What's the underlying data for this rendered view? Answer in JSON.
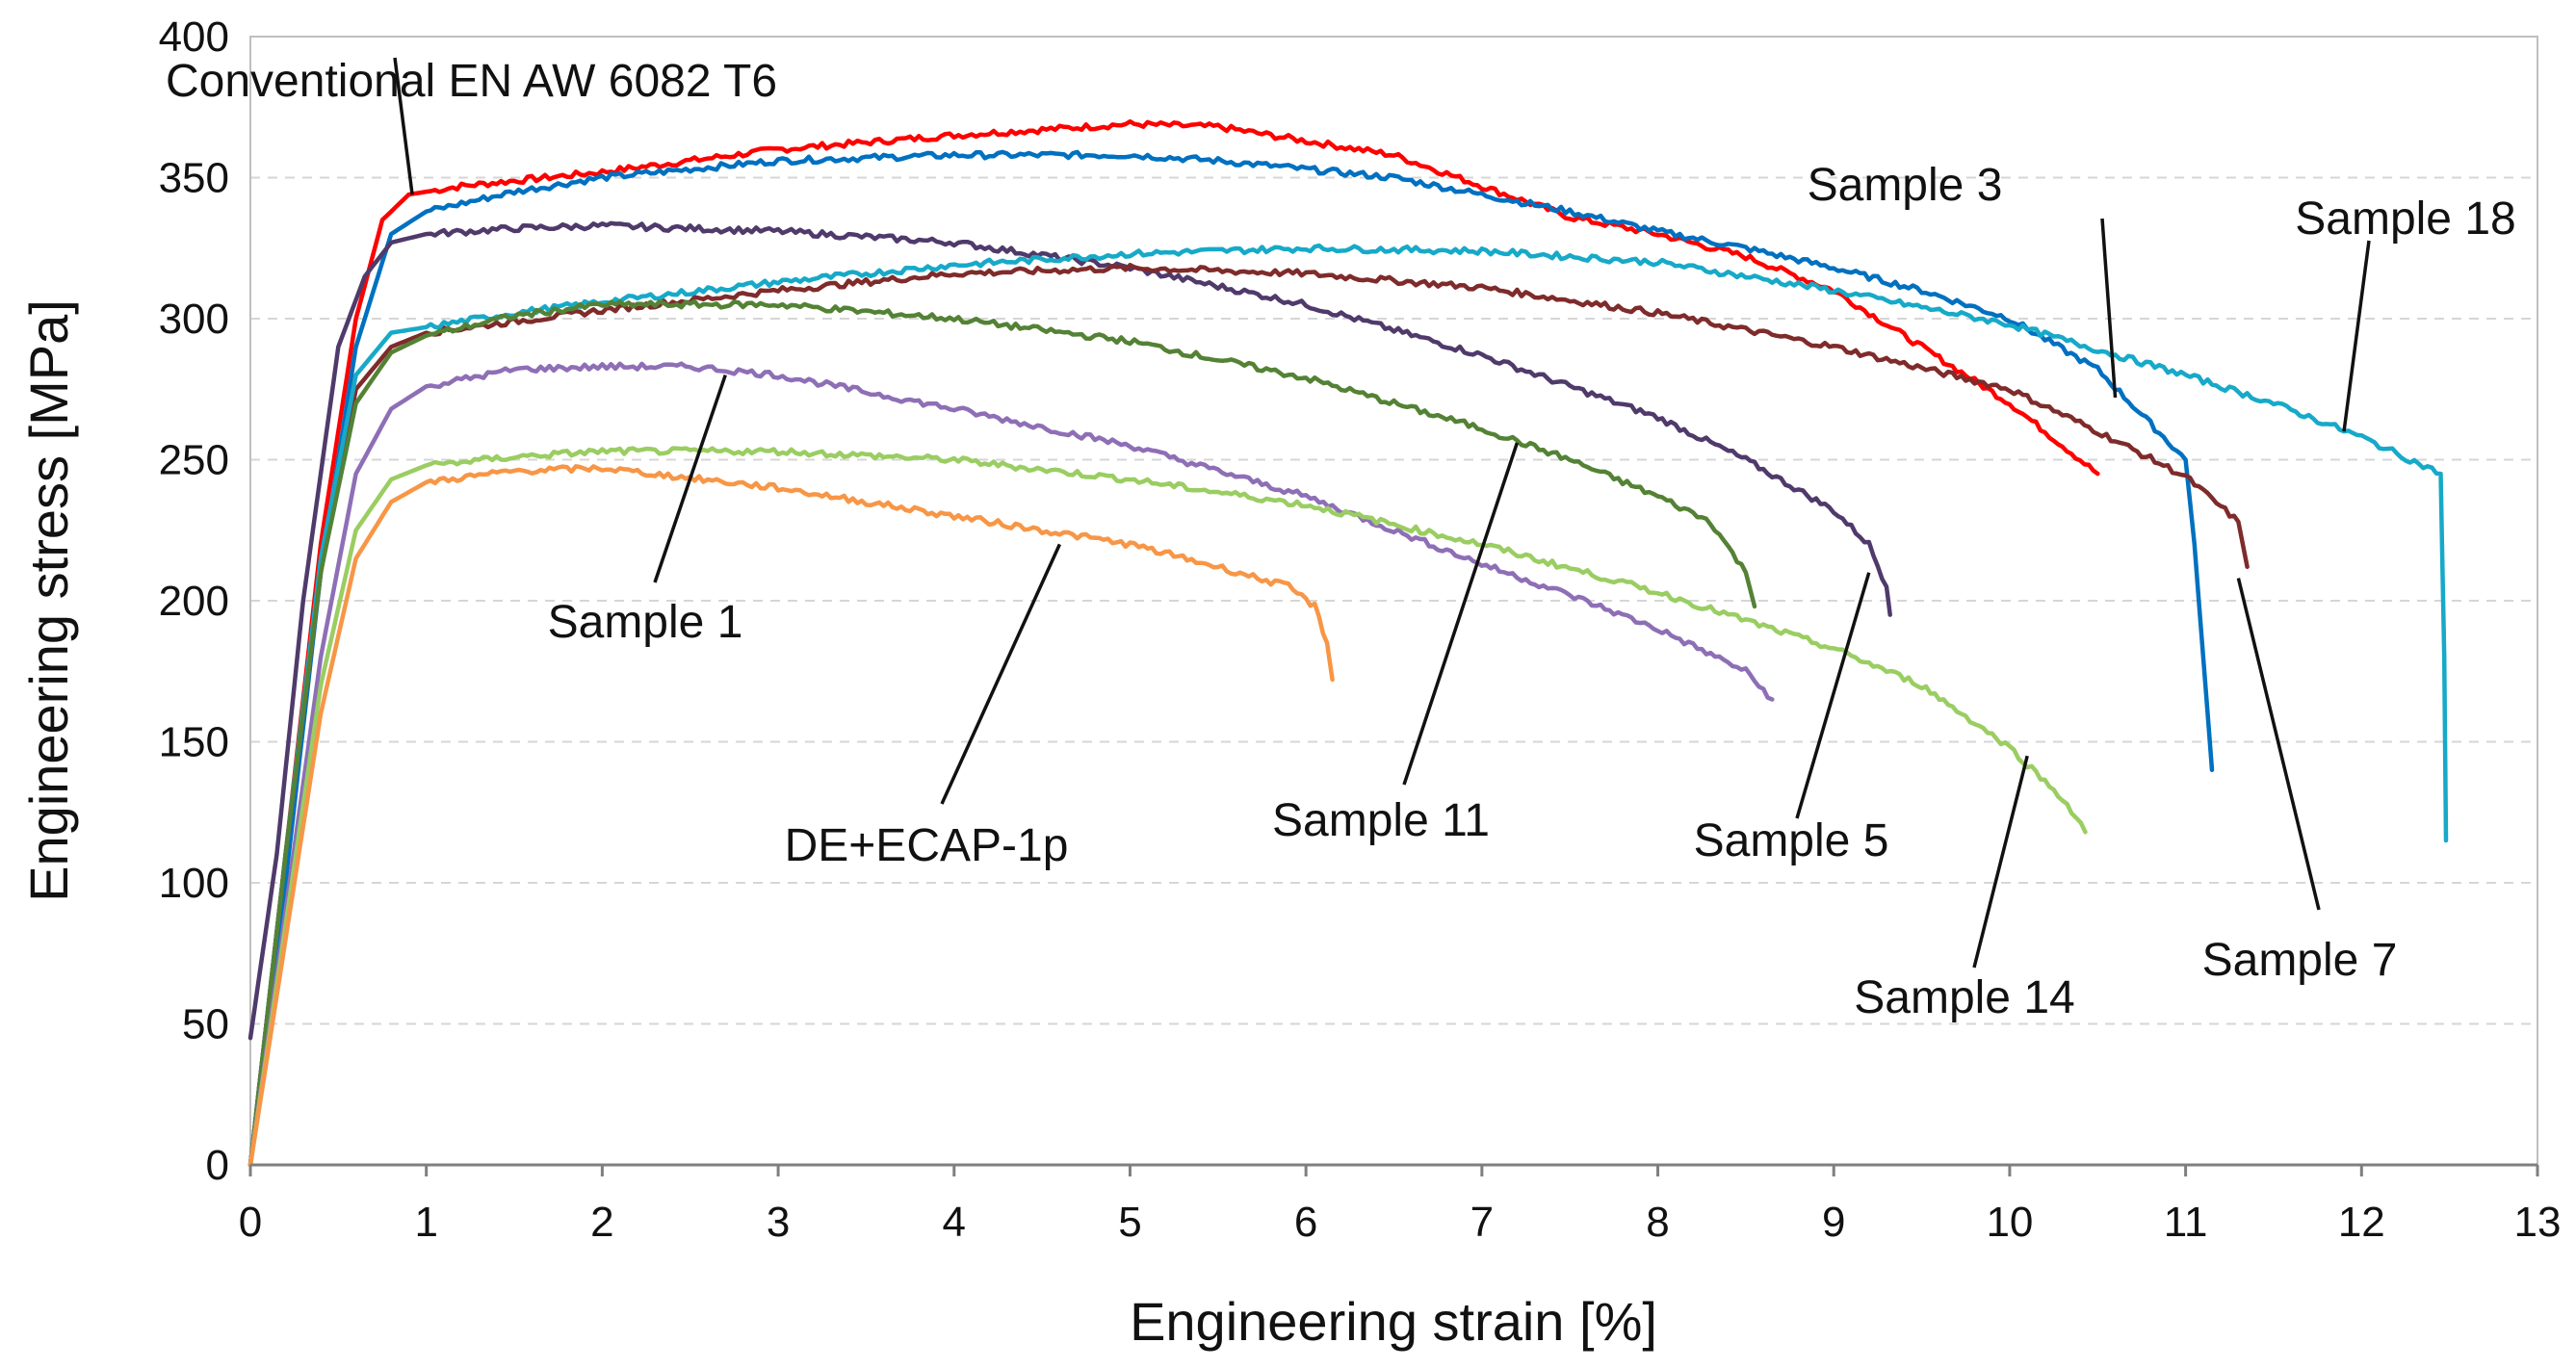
{
  "chart_data": {
    "type": "line",
    "title": "",
    "xlabel": "Engineering strain [%]",
    "ylabel": "Engineering stress [MPa]",
    "xlim": [
      0,
      13
    ],
    "ylim": [
      0,
      400
    ],
    "xticks": [
      0,
      1,
      2,
      3,
      4,
      5,
      6,
      7,
      8,
      9,
      10,
      11,
      12,
      13
    ],
    "yticks": [
      0,
      50,
      100,
      150,
      200,
      250,
      300,
      350,
      400
    ],
    "grid": true,
    "series": [
      {
        "name": "Conventional EN AW 6082 T6",
        "color": "#ff0000",
        "x": [
          0,
          0.2,
          0.4,
          0.6,
          0.75,
          0.9,
          1.2,
          2,
          3,
          4,
          5,
          5.5,
          6.5,
          7,
          7.5,
          8,
          8.5,
          9,
          9.5,
          10,
          10.3,
          10.5
        ],
        "y": [
          0,
          110,
          220,
          300,
          335,
          344,
          347,
          352,
          360,
          365,
          369,
          368,
          358,
          347,
          336,
          330,
          322,
          310,
          290,
          270,
          255,
          245
        ]
      },
      {
        "name": "Sample 3",
        "color": "#0070c0",
        "x": [
          0,
          0.2,
          0.4,
          0.6,
          0.8,
          1,
          1.5,
          2,
          3,
          4,
          5,
          5.5,
          6.5,
          7,
          7.5,
          8,
          8.5,
          9,
          9.5,
          10,
          10.5,
          11,
          11.05,
          11.1,
          11.15
        ],
        "y": [
          0,
          100,
          210,
          290,
          330,
          338,
          345,
          350,
          356,
          358,
          358,
          356,
          350,
          344,
          338,
          331,
          325,
          318,
          310,
          300,
          282,
          250,
          220,
          180,
          140
        ]
      },
      {
        "name": "Sample 5",
        "color": "#4f3a6b",
        "x": [
          0,
          0.15,
          0.3,
          0.5,
          0.65,
          0.8,
          1,
          1.5,
          2,
          3,
          4,
          5,
          6,
          7,
          8,
          8.5,
          9,
          9.2,
          9.3,
          9.32
        ],
        "y": [
          45,
          110,
          200,
          290,
          315,
          327,
          330,
          332,
          333,
          331,
          327,
          318,
          305,
          287,
          265,
          250,
          232,
          220,
          205,
          195
        ]
      },
      {
        "name": "Sample 7",
        "color": "#7f2b2b",
        "x": [
          0,
          0.2,
          0.4,
          0.6,
          0.8,
          1,
          1.5,
          2,
          3,
          4,
          5,
          6,
          7,
          8,
          9,
          10,
          10.5,
          11,
          11.3,
          11.35
        ],
        "y": [
          0,
          110,
          210,
          275,
          290,
          295,
          299,
          303,
          310,
          316,
          318,
          316,
          311,
          302,
          290,
          275,
          260,
          244,
          228,
          212
        ]
      },
      {
        "name": "Sample 18",
        "color": "#17a9c8",
        "x": [
          0,
          0.2,
          0.4,
          0.6,
          0.8,
          1,
          1.5,
          2,
          3,
          4,
          5,
          6,
          7,
          8,
          9,
          10,
          11,
          11.5,
          12,
          12.45,
          12.47,
          12.48
        ],
        "y": [
          0,
          110,
          215,
          280,
          295,
          297,
          302,
          306,
          313,
          319,
          323,
          325,
          324,
          320,
          310,
          298,
          280,
          270,
          258,
          245,
          180,
          115
        ]
      },
      {
        "name": "Sample 11",
        "color": "#548235",
        "x": [
          0,
          0.2,
          0.4,
          0.6,
          0.8,
          1,
          1.5,
          2,
          3,
          4,
          5,
          6,
          7,
          7.5,
          8,
          8.3,
          8.5,
          8.55
        ],
        "y": [
          0,
          110,
          210,
          270,
          288,
          294,
          301,
          305,
          305,
          300,
          292,
          279,
          261,
          250,
          237,
          228,
          210,
          198
        ]
      },
      {
        "name": "Sample 1",
        "color": "#8e6fb6",
        "x": [
          0,
          0.2,
          0.4,
          0.6,
          0.8,
          1,
          1.5,
          2,
          2.5,
          3,
          4,
          5,
          6,
          7,
          7.5,
          8,
          8.5,
          8.65
        ],
        "y": [
          0,
          90,
          180,
          245,
          268,
          276,
          282,
          283,
          283,
          280,
          268,
          255,
          237,
          213,
          202,
          190,
          175,
          165
        ]
      },
      {
        "name": "Sample 14",
        "color": "#9acd62",
        "x": [
          0,
          0.2,
          0.4,
          0.6,
          0.8,
          1,
          1.5,
          2,
          3,
          4,
          5,
          6,
          7,
          8,
          9,
          9.5,
          10,
          10.3,
          10.43
        ],
        "y": [
          0,
          85,
          170,
          225,
          243,
          248,
          251,
          253,
          253,
          250,
          243,
          234,
          220,
          203,
          183,
          170,
          148,
          130,
          118
        ]
      },
      {
        "name": "DE+ECAP-1p",
        "color": "#f79646",
        "x": [
          0,
          0.2,
          0.4,
          0.6,
          0.8,
          1,
          1.5,
          2,
          3,
          4,
          5,
          5.5,
          5.9,
          6.05,
          6.12,
          6.15
        ],
        "y": [
          0,
          80,
          160,
          215,
          235,
          242,
          246,
          247,
          240,
          230,
          220,
          212,
          205,
          198,
          185,
          172
        ]
      }
    ],
    "annotations": [
      {
        "text": "Conventional EN AW 6082 T6",
        "target": [
          0.92,
          344
        ]
      },
      {
        "text": "Sample 3",
        "target": [
          10.6,
          272
        ]
      },
      {
        "text": "Sample 18",
        "target": [
          11.9,
          260
        ]
      },
      {
        "text": "Sample 1",
        "target": [
          2.7,
          280
        ]
      },
      {
        "text": "DE+ECAP-1p",
        "target": [
          4.6,
          220
        ]
      },
      {
        "text": "Sample 11",
        "target": [
          7.2,
          256
        ]
      },
      {
        "text": "Sample 5",
        "target": [
          9.2,
          210
        ]
      },
      {
        "text": "Sample 7",
        "target": [
          11.3,
          208
        ]
      },
      {
        "text": "Sample 14",
        "target": [
          10.1,
          145
        ]
      }
    ]
  }
}
